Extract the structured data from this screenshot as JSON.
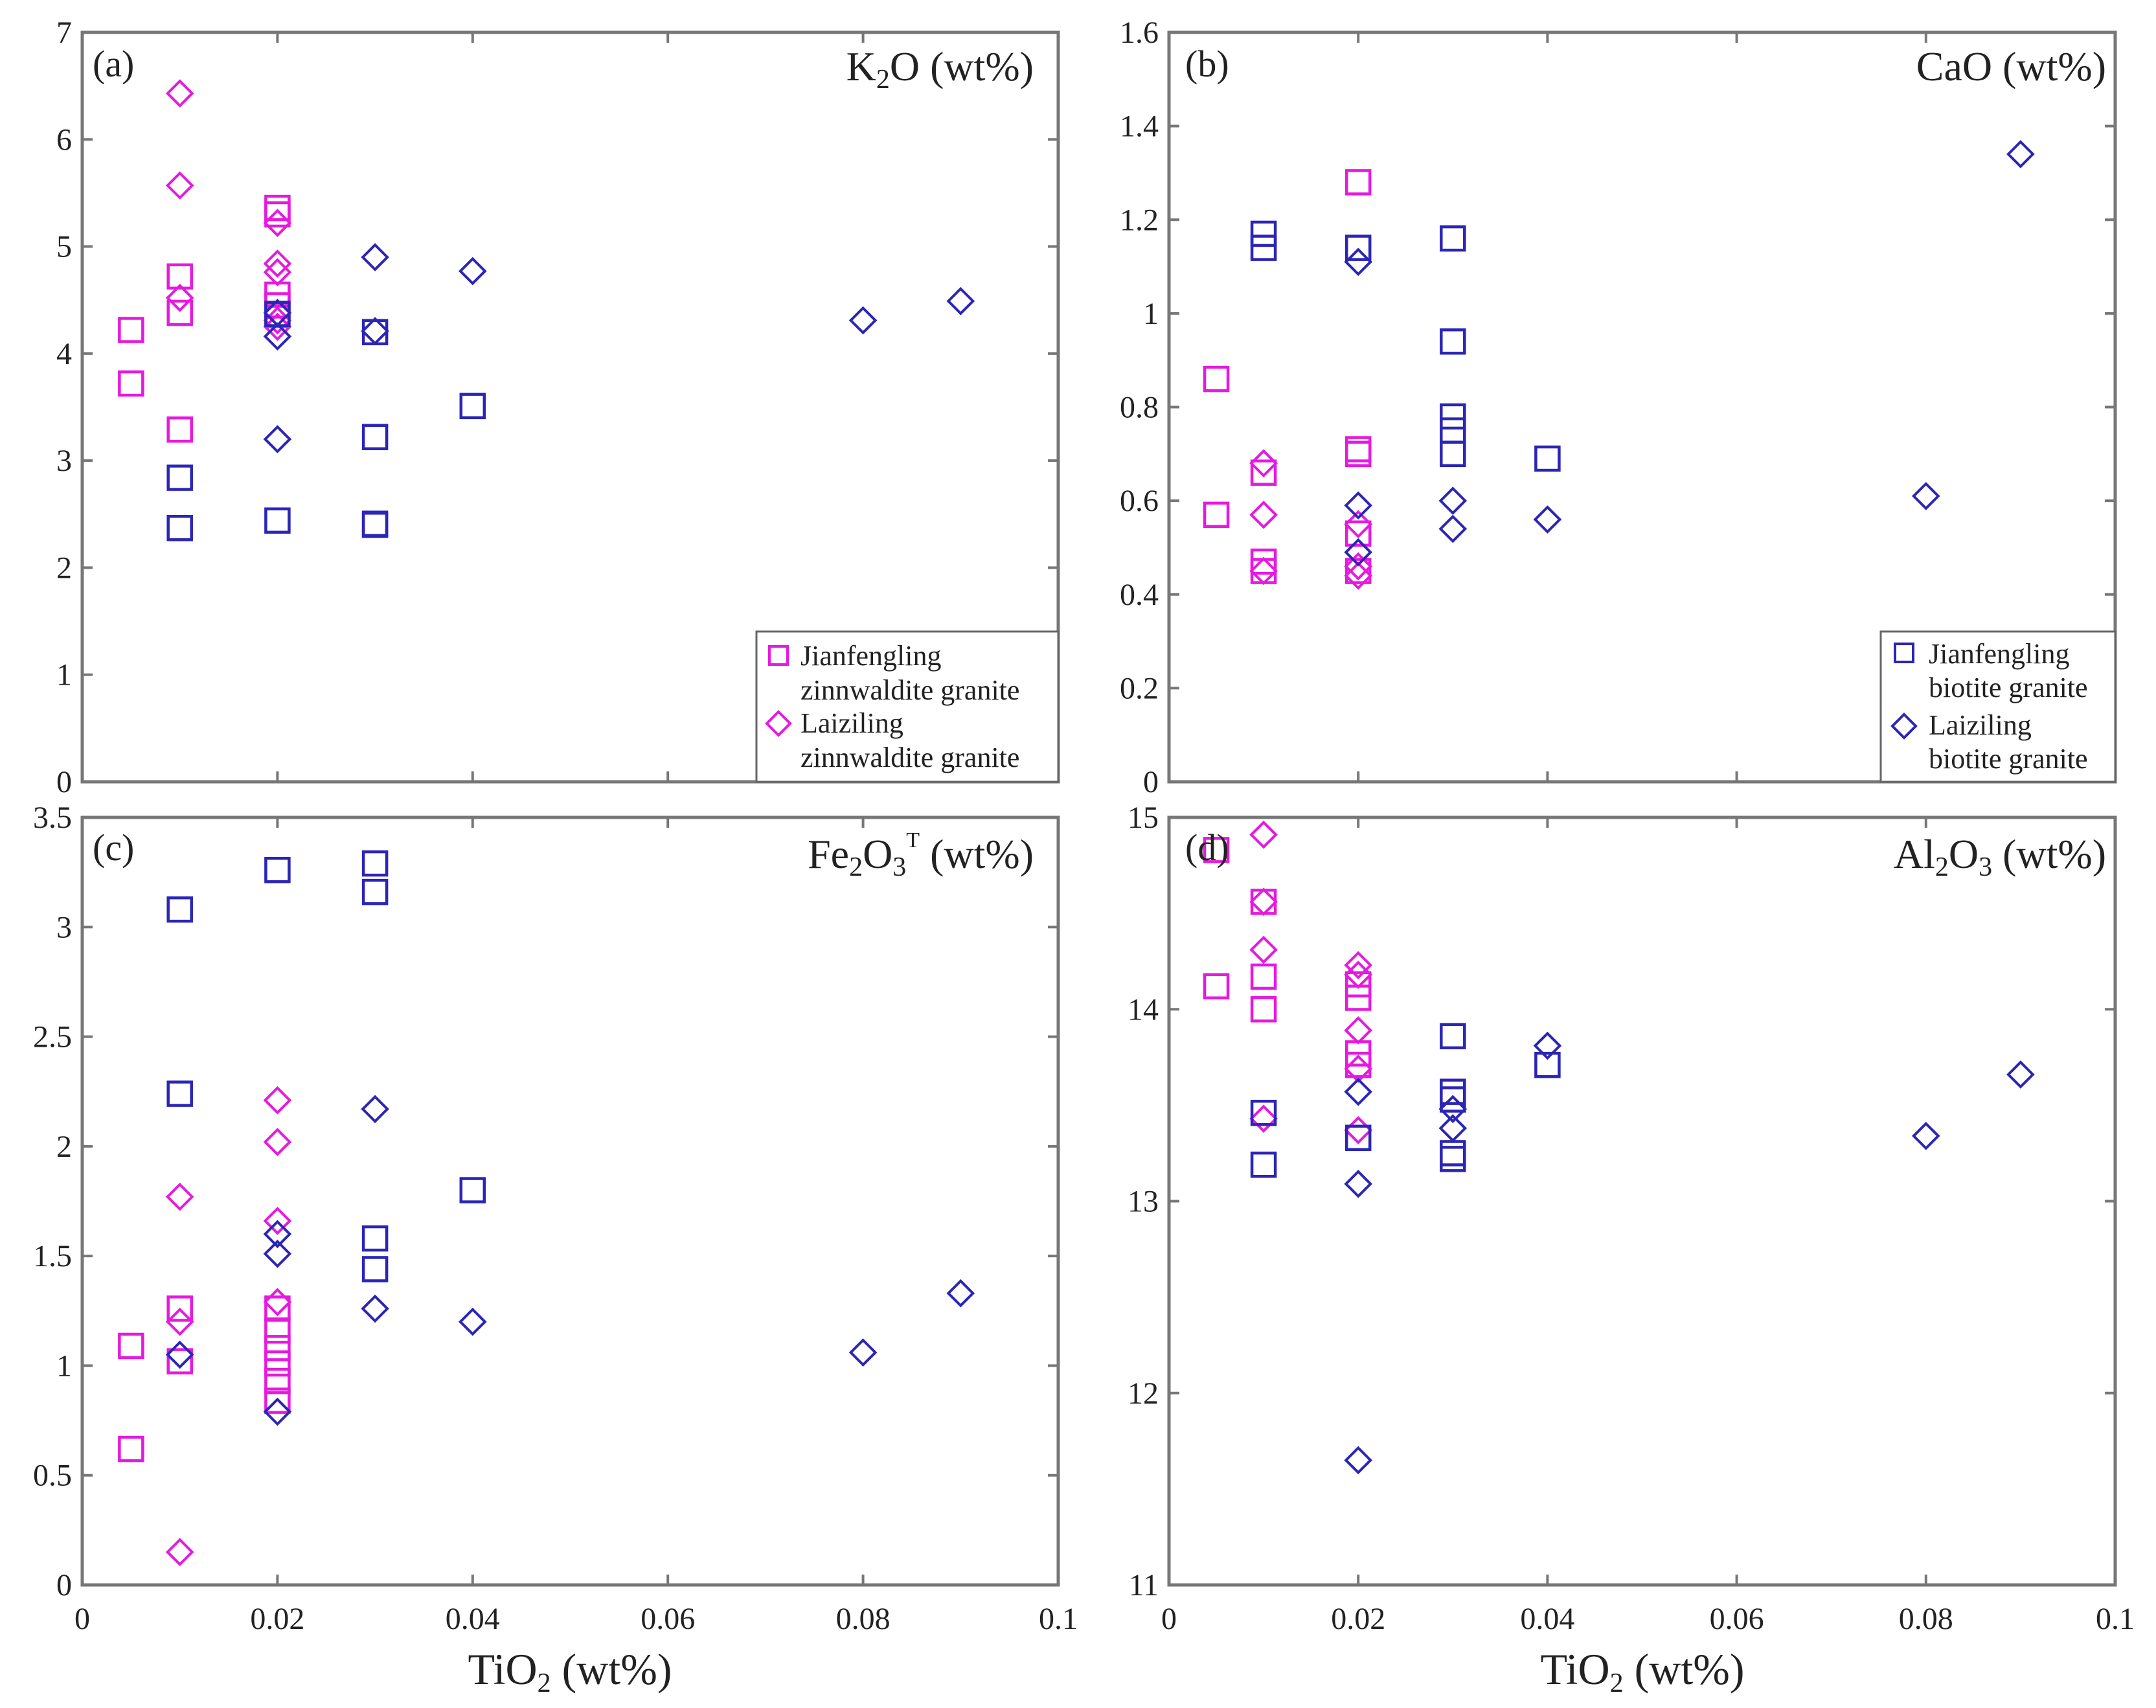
{
  "colors": {
    "zinnwaldite": "#E619E0",
    "biotite": "#2B25B7",
    "frame": "#777777"
  },
  "xaxis": {
    "tick_labels": [
      "0",
      "0.02",
      "0.04",
      "0.06",
      "0.08",
      "0.1"
    ],
    "title": "TiO",
    "sub": "2",
    "unit": " (wt%)"
  },
  "legend_zinn": {
    "jf": {
      "line1": "Jianfengling",
      "line2": "zinnwaldite granite"
    },
    "lz": {
      "line1": "Laiziling",
      "line2": "zinnwaldite granite"
    }
  },
  "legend_bio": {
    "jf": {
      "line1": "Jianfengling",
      "line2": "biotite granite"
    },
    "lz": {
      "line1": "Laiziling",
      "line2": "biotite granite"
    }
  },
  "panels": [
    {
      "letter": "(a)",
      "ox": "K",
      "sub": "2",
      "tail": "O",
      "sup": "",
      "unit": " (wt%)",
      "yticks": [
        "0",
        "1",
        "2",
        "3",
        "4",
        "5",
        "6",
        "7"
      ]
    },
    {
      "letter": "(b)",
      "ox": "CaO",
      "sub": "",
      "tail": "",
      "sup": "",
      "unit": " (wt%)",
      "yticks": [
        "0",
        "0.2",
        "0.4",
        "0.6",
        "0.8",
        "1",
        "1.2",
        "1.4",
        "1.6"
      ]
    },
    {
      "letter": "(c)",
      "ox": "Fe",
      "sub": "2",
      "tail": "O",
      "sub2": "3",
      "sup": "T",
      "unit": " (wt%)",
      "yticks": [
        "0",
        "0.5",
        "1",
        "1.5",
        "2",
        "2.5",
        "3",
        "3.5"
      ]
    },
    {
      "letter": "(d)",
      "ox": "Al",
      "sub": "2",
      "tail": "O",
      "sub2": "3",
      "sup": "",
      "unit": " (wt%)",
      "yticks": [
        "11",
        "12",
        "13",
        "14",
        "15"
      ]
    }
  ],
  "chart_data": [
    {
      "type": "scatter",
      "title": "(a) K2O (wt%)",
      "xlabel": "TiO2 (wt%)",
      "ylabel": "K2O (wt%)",
      "xlim": [
        0,
        0.1
      ],
      "ylim": [
        0,
        7
      ],
      "series": [
        {
          "name": "Jianfengling zinnwaldite granite",
          "marker": "square",
          "color": "#E619E0",
          "x": [
            0.005,
            0.005,
            0.01,
            0.01,
            0.01,
            0.02,
            0.02,
            0.02,
            0.02,
            0.02
          ],
          "y": [
            4.22,
            3.72,
            4.72,
            4.38,
            3.29,
            5.36,
            5.3,
            4.55,
            4.45,
            4.36
          ]
        },
        {
          "name": "Laiziling zinnwaldite granite",
          "marker": "diamond",
          "color": "#E619E0",
          "x": [
            0.01,
            0.01,
            0.01,
            0.02,
            0.02,
            0.02,
            0.02,
            0.02
          ],
          "y": [
            6.43,
            5.57,
            4.52,
            5.22,
            4.84,
            4.76,
            4.31,
            4.25
          ]
        },
        {
          "name": "Jianfengling biotite granite",
          "marker": "square",
          "color": "#2B25B7",
          "x": [
            0.01,
            0.01,
            0.02,
            0.02,
            0.03,
            0.03,
            0.03,
            0.03,
            0.04
          ],
          "y": [
            2.84,
            2.37,
            4.37,
            2.44,
            4.2,
            3.22,
            2.41,
            2.4,
            3.51
          ]
        },
        {
          "name": "Laiziling biotite granite",
          "marker": "diamond",
          "color": "#2B25B7",
          "x": [
            0.02,
            0.02,
            0.02,
            0.03,
            0.03,
            0.04,
            0.08,
            0.09
          ],
          "y": [
            4.38,
            4.16,
            3.2,
            4.9,
            4.21,
            4.77,
            4.31,
            4.49
          ]
        }
      ]
    },
    {
      "type": "scatter",
      "title": "(b) CaO (wt%)",
      "xlabel": "",
      "ylabel": "CaO (wt%)",
      "xlim": [
        0,
        0.1
      ],
      "ylim": [
        0,
        1.6
      ],
      "series": [
        {
          "name": "Jianfengling zinnwaldite granite",
          "marker": "square",
          "color": "#E619E0",
          "x": [
            0.005,
            0.005,
            0.01,
            0.01,
            0.01,
            0.02,
            0.02,
            0.02,
            0.02,
            0.02
          ],
          "y": [
            0.86,
            0.57,
            0.66,
            0.47,
            0.45,
            1.28,
            0.71,
            0.7,
            0.53,
            0.45
          ]
        },
        {
          "name": "Laiziling zinnwaldite granite",
          "marker": "diamond",
          "color": "#E619E0",
          "x": [
            0.01,
            0.01,
            0.01,
            0.02,
            0.02,
            0.02
          ],
          "y": [
            0.68,
            0.57,
            0.45,
            0.55,
            0.46,
            0.44
          ]
        },
        {
          "name": "Jianfengling biotite granite",
          "marker": "square",
          "color": "#2B25B7",
          "x": [
            0.01,
            0.01,
            0.02,
            0.03,
            0.03,
            0.03,
            0.03,
            0.03,
            0.04
          ],
          "y": [
            1.17,
            1.14,
            1.14,
            1.16,
            0.94,
            0.78,
            0.75,
            0.7,
            0.69
          ]
        },
        {
          "name": "Laiziling biotite granite",
          "marker": "diamond",
          "color": "#2B25B7",
          "x": [
            0.02,
            0.02,
            0.02,
            0.03,
            0.03,
            0.04,
            0.08,
            0.09
          ],
          "y": [
            1.11,
            0.59,
            0.49,
            0.6,
            0.54,
            0.56,
            0.61,
            1.34
          ]
        }
      ]
    },
    {
      "type": "scatter",
      "title": "(c) Fe2O3T (wt%)",
      "xlabel": "TiO2 (wt%)",
      "ylabel": "Fe2O3T (wt%)",
      "xlim": [
        0,
        0.1
      ],
      "ylim": [
        0,
        3.5
      ],
      "series": [
        {
          "name": "Jianfengling zinnwaldite granite",
          "marker": "square",
          "color": "#E619E0",
          "x": [
            0.005,
            0.005,
            0.01,
            0.01,
            0.02,
            0.02,
            0.02,
            0.02,
            0.02,
            0.02
          ],
          "y": [
            1.09,
            0.62,
            1.26,
            1.02,
            1.26,
            1.16,
            1.08,
            1.01,
            0.93,
            0.84
          ]
        },
        {
          "name": "Laiziling zinnwaldite granite",
          "marker": "diamond",
          "color": "#E619E0",
          "x": [
            0.01,
            0.01,
            0.01,
            0.02,
            0.02,
            0.02,
            0.02
          ],
          "y": [
            1.77,
            1.2,
            0.15,
            2.21,
            2.02,
            1.66,
            1.29
          ]
        },
        {
          "name": "Jianfengling biotite granite",
          "marker": "square",
          "color": "#2B25B7",
          "x": [
            0.01,
            0.01,
            0.02,
            0.03,
            0.03,
            0.03,
            0.03,
            0.04
          ],
          "y": [
            3.08,
            2.24,
            3.26,
            3.29,
            3.16,
            1.58,
            1.44,
            1.8
          ]
        },
        {
          "name": "Laiziling biotite granite",
          "marker": "diamond",
          "color": "#2B25B7",
          "x": [
            0.01,
            0.02,
            0.02,
            0.02,
            0.03,
            0.03,
            0.04,
            0.08,
            0.09
          ],
          "y": [
            1.05,
            1.6,
            1.51,
            0.79,
            2.17,
            1.26,
            1.2,
            1.06,
            1.33
          ]
        }
      ]
    },
    {
      "type": "scatter",
      "title": "(d) Al2O3 (wt%)",
      "xlabel": "TiO2 (wt%)",
      "ylabel": "Al2O3 (wt%)",
      "xlim": [
        0,
        0.1
      ],
      "ylim": [
        11,
        15
      ],
      "series": [
        {
          "name": "Jianfengling zinnwaldite granite",
          "marker": "square",
          "color": "#E619E0",
          "x": [
            0.005,
            0.005,
            0.01,
            0.01,
            0.01,
            0.02,
            0.02,
            0.02,
            0.02
          ],
          "y": [
            14.83,
            14.12,
            14.56,
            14.17,
            14.0,
            14.13,
            14.06,
            13.77,
            13.71
          ]
        },
        {
          "name": "Laiziling zinnwaldite granite",
          "marker": "diamond",
          "color": "#E619E0",
          "x": [
            0.01,
            0.01,
            0.01,
            0.01,
            0.02,
            0.02,
            0.02,
            0.02,
            0.02
          ],
          "y": [
            14.91,
            14.56,
            14.31,
            13.43,
            14.23,
            14.18,
            13.89,
            13.69,
            13.37
          ]
        },
        {
          "name": "Jianfengling biotite granite",
          "marker": "square",
          "color": "#2B25B7",
          "x": [
            0.01,
            0.01,
            0.02,
            0.03,
            0.03,
            0.03,
            0.03,
            0.03,
            0.04
          ],
          "y": [
            13.46,
            13.19,
            13.33,
            13.86,
            13.57,
            13.53,
            13.25,
            13.22,
            13.71
          ]
        },
        {
          "name": "Laiziling biotite granite",
          "marker": "diamond",
          "color": "#2B25B7",
          "x": [
            0.02,
            0.02,
            0.02,
            0.03,
            0.03,
            0.04,
            0.08,
            0.09
          ],
          "y": [
            13.57,
            13.09,
            11.65,
            13.48,
            13.38,
            13.81,
            13.34,
            13.66
          ]
        }
      ]
    }
  ]
}
